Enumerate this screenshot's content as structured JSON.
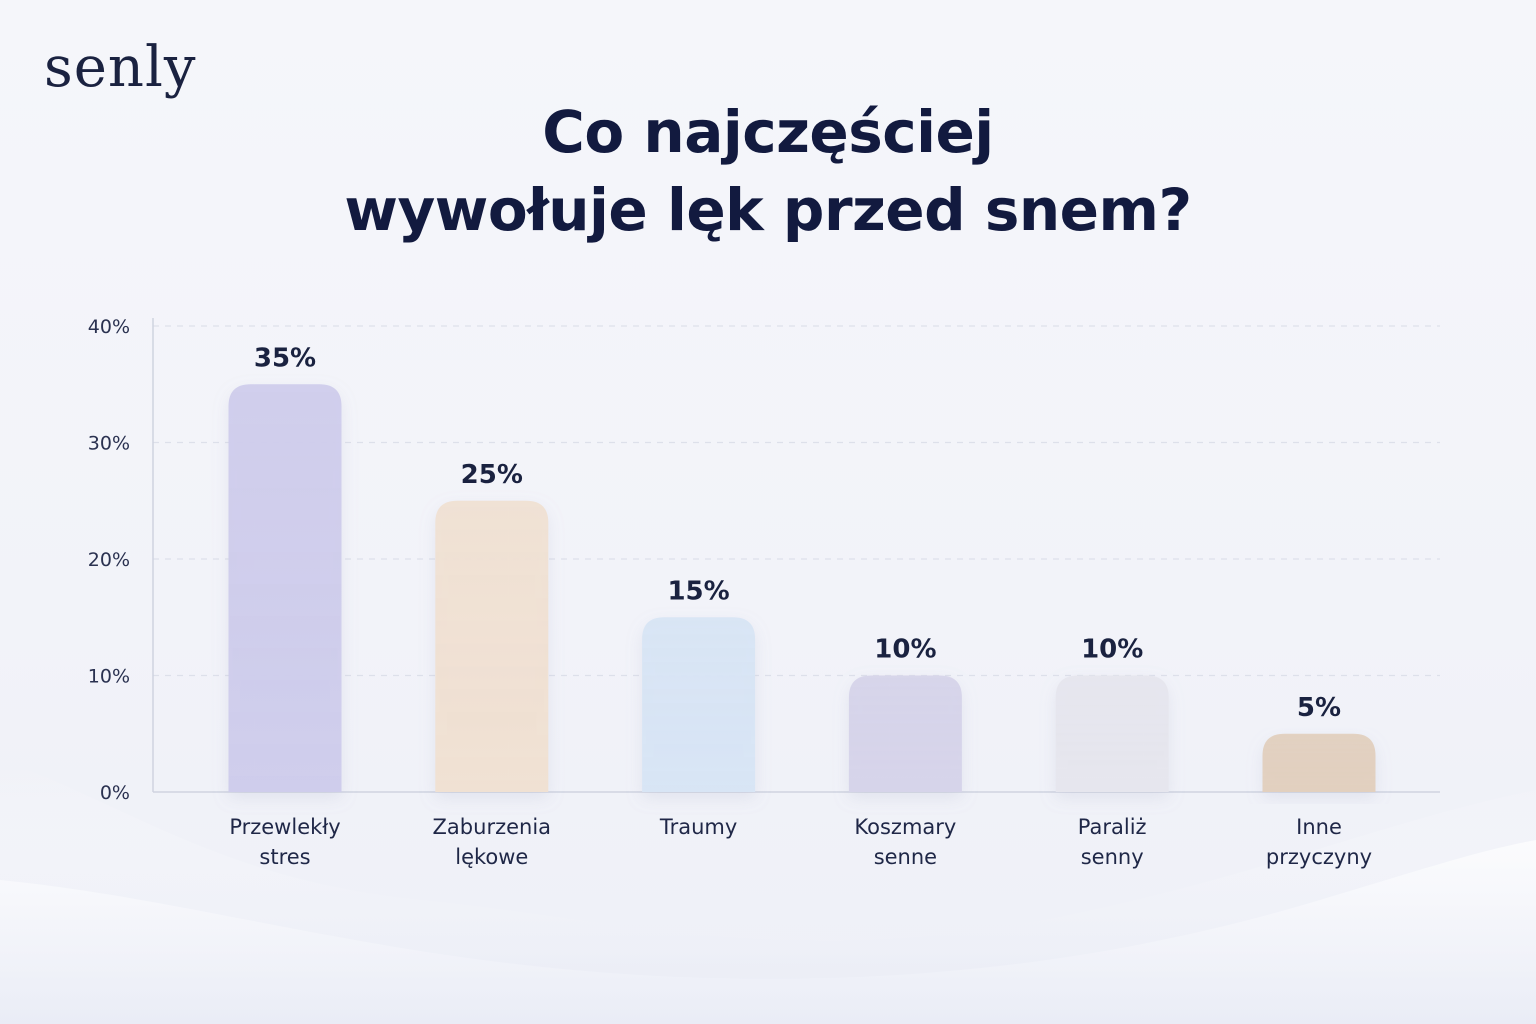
{
  "brand": {
    "logo_text": "senly"
  },
  "header": {
    "title_line1": "Co najczęściej",
    "title_line2": "wywołuje lęk przed snem?"
  },
  "colors": {
    "title": "#121a3f",
    "grid": "#dde0ea",
    "axis": "#cfd3e0",
    "bars": [
      "#cfcdec",
      "#f0e1d3",
      "#d8e5f5",
      "#d6d4ea",
      "#e6e6ee",
      "#e2d0bf"
    ]
  },
  "chart_data": {
    "type": "bar",
    "title": "Co najczęściej wywołuje lęk przed snem?",
    "categories": [
      [
        "Przewlekły",
        "stres"
      ],
      [
        "Zaburzenia",
        "lękowe"
      ],
      [
        "Traumy"
      ],
      [
        "Koszmary",
        "senne"
      ],
      [
        "Paraliż",
        "senny"
      ],
      [
        "Inne",
        "przyczyny"
      ]
    ],
    "values": [
      35,
      25,
      15,
      10,
      10,
      5
    ],
    "value_labels": [
      "35%",
      "25%",
      "15%",
      "10%",
      "10%",
      "5%"
    ],
    "ylim": [
      0,
      40
    ],
    "yticks": [
      0,
      10,
      20,
      30,
      40
    ],
    "ytick_labels": [
      "0%",
      "10%",
      "20%",
      "30%",
      "40%"
    ],
    "grid": true,
    "xlabel": "",
    "ylabel": ""
  }
}
